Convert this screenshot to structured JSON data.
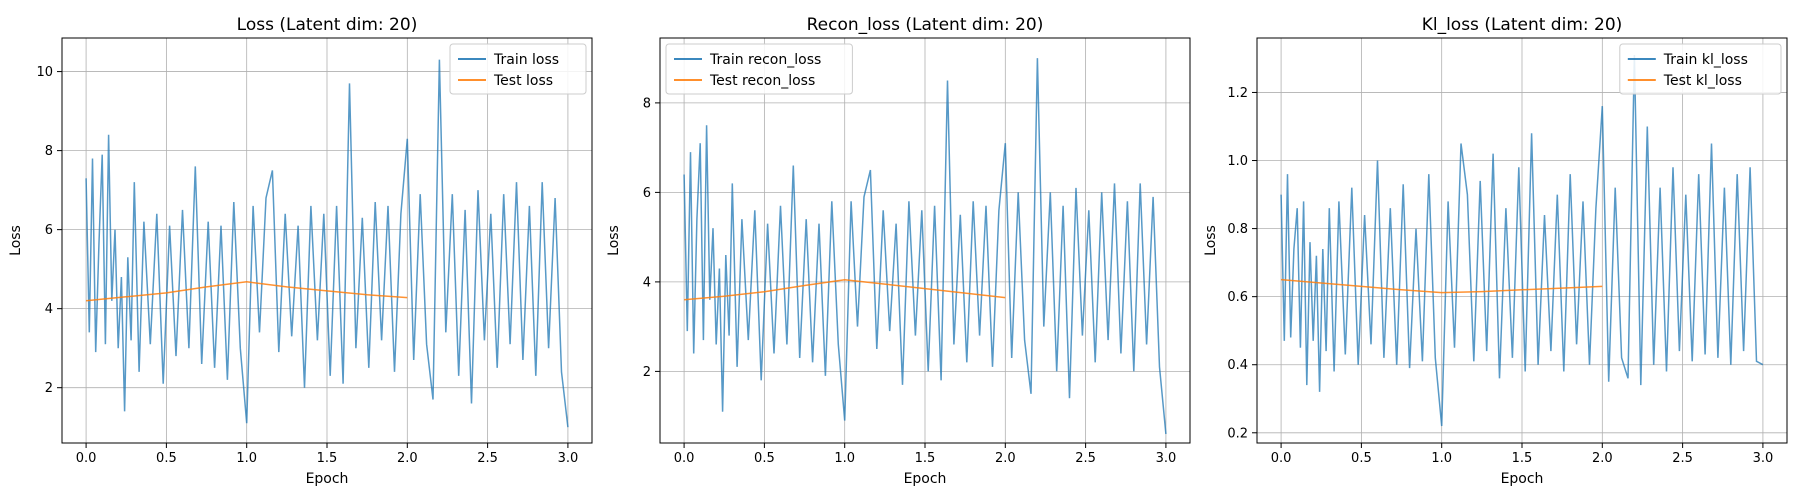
{
  "chart_data": [
    {
      "type": "line",
      "title": "Loss (Latent dim: 20)",
      "xlabel": "Epoch",
      "ylabel": "Loss",
      "xlim": [
        -0.15,
        3.15
      ],
      "ylim": [
        0.6,
        10.85
      ],
      "xticks": [
        0.0,
        0.5,
        1.0,
        1.5,
        2.0,
        2.5,
        3.0
      ],
      "xtick_labels": [
        "0.0",
        "0.5",
        "1.0",
        "1.5",
        "2.0",
        "2.5",
        "3.0"
      ],
      "yticks": [
        2,
        4,
        6,
        8,
        10
      ],
      "ytick_labels": [
        "2",
        "4",
        "6",
        "8",
        "10"
      ],
      "grid": true,
      "legend_position": "top-right",
      "series": [
        {
          "name": "Train loss",
          "color": "#1f77b4",
          "x": [
            0.0,
            0.02,
            0.04,
            0.06,
            0.08,
            0.1,
            0.12,
            0.14,
            0.16,
            0.18,
            0.2,
            0.22,
            0.24,
            0.26,
            0.28,
            0.3,
            0.33,
            0.36,
            0.4,
            0.44,
            0.48,
            0.52,
            0.56,
            0.6,
            0.64,
            0.68,
            0.72,
            0.76,
            0.8,
            0.84,
            0.88,
            0.92,
            0.96,
            1.0,
            1.04,
            1.08,
            1.12,
            1.16,
            1.2,
            1.24,
            1.28,
            1.32,
            1.36,
            1.4,
            1.44,
            1.48,
            1.52,
            1.56,
            1.6,
            1.64,
            1.68,
            1.72,
            1.76,
            1.8,
            1.84,
            1.88,
            1.92,
            1.96,
            2.0,
            2.04,
            2.08,
            2.12,
            2.16,
            2.2,
            2.24,
            2.28,
            2.32,
            2.36,
            2.4,
            2.44,
            2.48,
            2.52,
            2.56,
            2.6,
            2.64,
            2.68,
            2.72,
            2.76,
            2.8,
            2.84,
            2.88,
            2.92,
            2.96,
            3.0
          ],
          "y": [
            7.3,
            3.4,
            7.8,
            2.9,
            5.6,
            7.9,
            3.1,
            8.4,
            4.2,
            6.0,
            3.0,
            4.8,
            1.4,
            5.3,
            3.2,
            7.2,
            2.4,
            6.2,
            3.1,
            6.4,
            2.1,
            6.1,
            2.8,
            6.5,
            3.0,
            7.6,
            2.6,
            6.2,
            2.5,
            6.1,
            2.2,
            6.7,
            3.0,
            1.1,
            6.6,
            3.4,
            6.8,
            7.5,
            2.9,
            6.4,
            3.3,
            6.1,
            2.0,
            6.6,
            3.2,
            6.4,
            2.3,
            6.6,
            2.1,
            9.7,
            3.0,
            6.3,
            2.5,
            6.7,
            3.2,
            6.6,
            2.4,
            6.4,
            8.3,
            2.7,
            6.9,
            3.1,
            1.7,
            10.3,
            3.4,
            6.9,
            2.3,
            6.5,
            1.6,
            7.0,
            3.2,
            6.4,
            2.5,
            6.9,
            3.1,
            7.2,
            2.7,
            6.6,
            2.3,
            7.2,
            3.0,
            6.8,
            2.4,
            1.0
          ]
        },
        {
          "name": "Test loss",
          "color": "#ff7f0e",
          "x": [
            0.0,
            0.25,
            0.5,
            0.75,
            1.0,
            1.25,
            1.5,
            1.75,
            2.0
          ],
          "y": [
            4.2,
            4.3,
            4.4,
            4.55,
            4.68,
            4.55,
            4.45,
            4.35,
            4.28
          ]
        }
      ]
    },
    {
      "type": "line",
      "title": "Recon_loss (Latent dim: 20)",
      "xlabel": "Epoch",
      "ylabel": "Loss",
      "xlim": [
        -0.15,
        3.15
      ],
      "ylim": [
        0.4,
        9.45
      ],
      "xticks": [
        0.0,
        0.5,
        1.0,
        1.5,
        2.0,
        2.5,
        3.0
      ],
      "xtick_labels": [
        "0.0",
        "0.5",
        "1.0",
        "1.5",
        "2.0",
        "2.5",
        "3.0"
      ],
      "yticks": [
        2,
        4,
        6,
        8
      ],
      "ytick_labels": [
        "2",
        "4",
        "6",
        "8"
      ],
      "grid": true,
      "legend_position": "top-left",
      "series": [
        {
          "name": "Train recon_loss",
          "color": "#1f77b4",
          "x": [
            0.0,
            0.02,
            0.04,
            0.06,
            0.08,
            0.1,
            0.12,
            0.14,
            0.16,
            0.18,
            0.2,
            0.22,
            0.24,
            0.26,
            0.28,
            0.3,
            0.33,
            0.36,
            0.4,
            0.44,
            0.48,
            0.52,
            0.56,
            0.6,
            0.64,
            0.68,
            0.72,
            0.76,
            0.8,
            0.84,
            0.88,
            0.92,
            0.96,
            1.0,
            1.04,
            1.08,
            1.12,
            1.16,
            1.2,
            1.24,
            1.28,
            1.32,
            1.36,
            1.4,
            1.44,
            1.48,
            1.52,
            1.56,
            1.6,
            1.64,
            1.68,
            1.72,
            1.76,
            1.8,
            1.84,
            1.88,
            1.92,
            1.96,
            2.0,
            2.04,
            2.08,
            2.12,
            2.16,
            2.2,
            2.24,
            2.28,
            2.32,
            2.36,
            2.4,
            2.44,
            2.48,
            2.52,
            2.56,
            2.6,
            2.64,
            2.68,
            2.72,
            2.76,
            2.8,
            2.84,
            2.88,
            2.92,
            2.96,
            3.0
          ],
          "y": [
            6.4,
            2.9,
            6.9,
            2.4,
            5.4,
            7.1,
            2.7,
            7.5,
            3.6,
            5.2,
            2.6,
            4.3,
            1.1,
            4.6,
            2.8,
            6.2,
            2.1,
            5.4,
            2.7,
            5.6,
            1.8,
            5.3,
            2.4,
            5.7,
            2.6,
            6.6,
            2.3,
            5.4,
            2.2,
            5.3,
            1.9,
            5.8,
            2.6,
            0.9,
            5.8,
            3.0,
            5.9,
            6.5,
            2.5,
            5.6,
            2.9,
            5.3,
            1.7,
            5.8,
            2.8,
            5.6,
            2.0,
            5.7,
            1.8,
            8.5,
            2.6,
            5.5,
            2.2,
            5.8,
            2.8,
            5.7,
            2.1,
            5.6,
            7.1,
            2.3,
            6.0,
            2.7,
            1.5,
            9.0,
            3.0,
            6.0,
            2.0,
            5.7,
            1.4,
            6.1,
            2.8,
            5.6,
            2.2,
            6.0,
            2.7,
            6.2,
            2.4,
            5.8,
            2.0,
            6.2,
            2.6,
            5.9,
            2.1,
            0.6
          ]
        },
        {
          "name": "Test recon_loss",
          "color": "#ff7f0e",
          "x": [
            0.0,
            0.25,
            0.5,
            0.75,
            1.0,
            1.25,
            1.5,
            1.75,
            2.0
          ],
          "y": [
            3.6,
            3.68,
            3.78,
            3.92,
            4.05,
            3.95,
            3.85,
            3.75,
            3.65
          ]
        }
      ]
    },
    {
      "type": "line",
      "title": "Kl_loss (Latent dim: 20)",
      "xlabel": "Epoch",
      "ylabel": "Loss",
      "xlim": [
        -0.15,
        3.15
      ],
      "ylim": [
        0.17,
        1.36
      ],
      "xticks": [
        0.0,
        0.5,
        1.0,
        1.5,
        2.0,
        2.5,
        3.0
      ],
      "xtick_labels": [
        "0.0",
        "0.5",
        "1.0",
        "1.5",
        "2.0",
        "2.5",
        "3.0"
      ],
      "yticks": [
        0.2,
        0.4,
        0.6,
        0.8,
        1.0,
        1.2
      ],
      "ytick_labels": [
        "0.2",
        "0.4",
        "0.6",
        "0.8",
        "1.0",
        "1.2"
      ],
      "grid": true,
      "legend_position": "top-right",
      "series": [
        {
          "name": "Train kl_loss",
          "color": "#1f77b4",
          "x": [
            0.0,
            0.02,
            0.04,
            0.06,
            0.08,
            0.1,
            0.12,
            0.14,
            0.16,
            0.18,
            0.2,
            0.22,
            0.24,
            0.26,
            0.28,
            0.3,
            0.33,
            0.36,
            0.4,
            0.44,
            0.48,
            0.52,
            0.56,
            0.6,
            0.64,
            0.68,
            0.72,
            0.76,
            0.8,
            0.84,
            0.88,
            0.92,
            0.96,
            1.0,
            1.04,
            1.08,
            1.12,
            1.16,
            1.2,
            1.24,
            1.28,
            1.32,
            1.36,
            1.4,
            1.44,
            1.48,
            1.52,
            1.56,
            1.6,
            1.64,
            1.68,
            1.72,
            1.76,
            1.8,
            1.84,
            1.88,
            1.92,
            1.96,
            2.0,
            2.04,
            2.08,
            2.12,
            2.16,
            2.2,
            2.24,
            2.28,
            2.32,
            2.36,
            2.4,
            2.44,
            2.48,
            2.52,
            2.56,
            2.6,
            2.64,
            2.68,
            2.72,
            2.76,
            2.8,
            2.84,
            2.88,
            2.92,
            2.96,
            3.0
          ],
          "y": [
            0.9,
            0.47,
            0.96,
            0.48,
            0.74,
            0.86,
            0.45,
            0.88,
            0.34,
            0.76,
            0.47,
            0.72,
            0.32,
            0.74,
            0.44,
            0.86,
            0.38,
            0.88,
            0.43,
            0.92,
            0.4,
            0.84,
            0.46,
            1.0,
            0.42,
            0.86,
            0.4,
            0.93,
            0.39,
            0.8,
            0.41,
            0.96,
            0.42,
            0.22,
            0.88,
            0.45,
            1.05,
            0.9,
            0.41,
            0.94,
            0.44,
            1.02,
            0.36,
            0.86,
            0.42,
            0.98,
            0.38,
            1.08,
            0.4,
            0.84,
            0.44,
            0.9,
            0.38,
            0.96,
            0.46,
            0.88,
            0.4,
            0.86,
            1.16,
            0.35,
            0.92,
            0.42,
            0.36,
            1.31,
            0.34,
            1.1,
            0.4,
            0.92,
            0.38,
            0.98,
            0.44,
            0.9,
            0.41,
            0.96,
            0.43,
            1.05,
            0.42,
            0.92,
            0.4,
            0.96,
            0.44,
            0.98,
            0.41,
            0.4
          ]
        },
        {
          "name": "Test kl_loss",
          "color": "#ff7f0e",
          "x": [
            0.0,
            0.25,
            0.5,
            0.75,
            1.0,
            1.25,
            1.5,
            1.75,
            2.0
          ],
          "y": [
            0.65,
            0.64,
            0.63,
            0.62,
            0.612,
            0.615,
            0.62,
            0.625,
            0.63
          ]
        }
      ]
    }
  ]
}
